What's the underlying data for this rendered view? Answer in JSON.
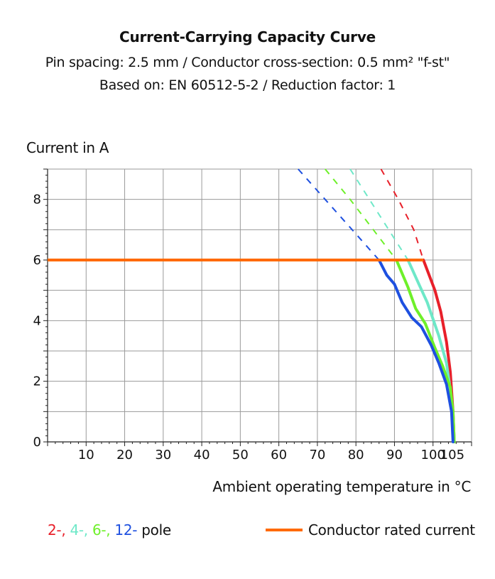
{
  "chart_data": {
    "type": "line",
    "title": "Current-Carrying Capacity Curve",
    "subtitle_line1": "Pin spacing: 2.5 mm / Conductor cross-section: 0.5 mm² \"f-st\"",
    "subtitle_line2": "Based on: EN 60512-5-2 / Reduction factor: 1",
    "ylabel": "Current in A",
    "xlabel": "Ambient operating temperature in °C",
    "xlim": [
      0,
      110
    ],
    "ylim": [
      0,
      9
    ],
    "x_ticks": [
      "10",
      "20",
      "30",
      "40",
      "50",
      "60",
      "70",
      "80",
      "90",
      "100",
      "105"
    ],
    "y_ticks": [
      "0",
      "2",
      "4",
      "6",
      "8"
    ],
    "grid": true,
    "rated_current": {
      "name": "Conductor rated current",
      "value": 6,
      "color": "#ff6a00"
    },
    "series": [
      {
        "name": "2-,",
        "color": "#e8202a",
        "solid": [
          [
            97.5,
            6
          ],
          [
            99,
            5.5
          ],
          [
            100.5,
            5
          ],
          [
            102,
            4.3
          ],
          [
            103.5,
            3.3
          ],
          [
            104.5,
            2.3
          ],
          [
            105.2,
            1
          ],
          [
            105.5,
            0
          ]
        ],
        "dashed": [
          [
            86.5,
            9
          ],
          [
            91,
            8
          ],
          [
            95,
            7
          ],
          [
            97.5,
            6
          ]
        ]
      },
      {
        "name": "4-,",
        "color": "#6ee8c8",
        "solid": [
          [
            93.5,
            6
          ],
          [
            96,
            5.3
          ],
          [
            98.5,
            4.6
          ],
          [
            101.5,
            3.5
          ],
          [
            103.5,
            2.6
          ],
          [
            104.5,
            1.7
          ],
          [
            105.2,
            0.9
          ],
          [
            105.5,
            0
          ]
        ],
        "dashed": [
          [
            78.5,
            9
          ],
          [
            83.5,
            8
          ],
          [
            88.5,
            7
          ],
          [
            93.5,
            6
          ]
        ]
      },
      {
        "name": "6-,",
        "color": "#6ef02a",
        "solid": [
          [
            90.5,
            6
          ],
          [
            93.5,
            5.1
          ],
          [
            95.5,
            4.4
          ],
          [
            98,
            3.9
          ],
          [
            100.5,
            3.1
          ],
          [
            102.5,
            2.5
          ],
          [
            104.5,
            1.8
          ],
          [
            105.2,
            1
          ],
          [
            105.5,
            0
          ]
        ],
        "dashed": [
          [
            72,
            9
          ],
          [
            78.5,
            8
          ],
          [
            84.5,
            7
          ],
          [
            90.5,
            6
          ]
        ]
      },
      {
        "name": "12-",
        "color": "#1e50e0",
        "solid": [
          [
            86,
            6
          ],
          [
            88,
            5.5
          ],
          [
            90,
            5.2
          ],
          [
            92,
            4.6
          ],
          [
            94.5,
            4.1
          ],
          [
            97,
            3.8
          ],
          [
            99.5,
            3.2
          ],
          [
            101.5,
            2.6
          ],
          [
            103.5,
            1.9
          ],
          [
            104.8,
            1
          ],
          [
            105.2,
            0
          ]
        ],
        "dashed": [
          [
            65,
            9
          ],
          [
            72,
            8
          ],
          [
            79,
            7
          ],
          [
            86,
            6
          ]
        ]
      }
    ],
    "legend_suffix": "pole"
  }
}
